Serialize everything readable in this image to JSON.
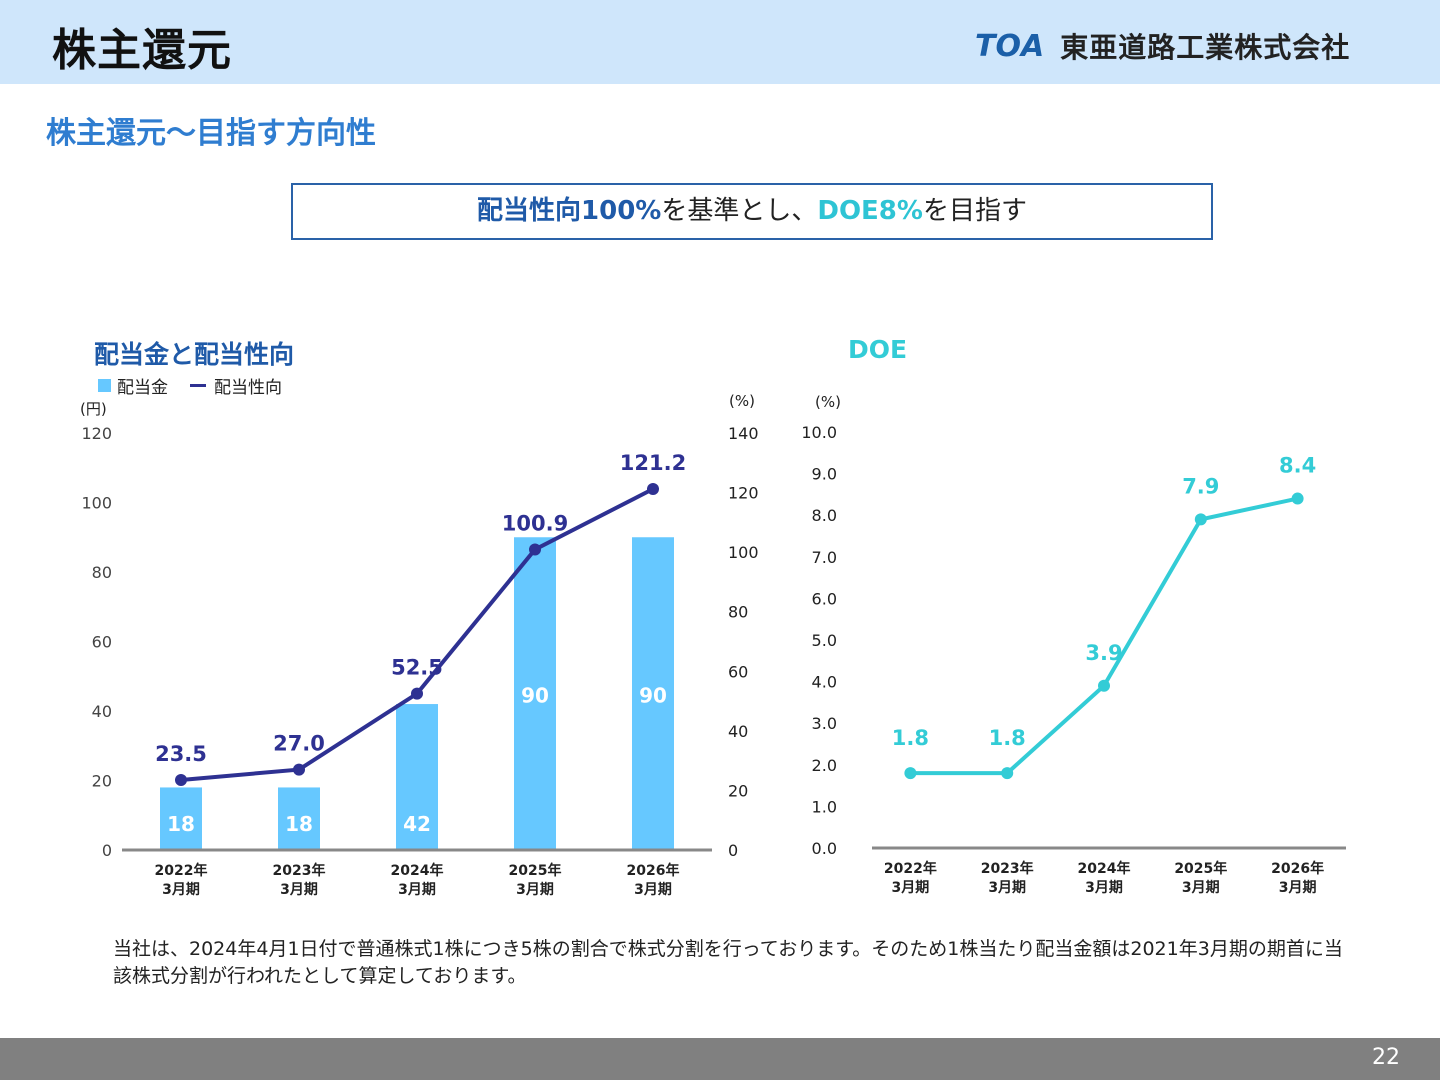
{
  "header": {
    "title": "株主還元",
    "logo_mark": "TOA",
    "company_name": "東亜道路工業株式会社"
  },
  "section_title": "株主還元〜目指す方向性",
  "banner": {
    "em1": "配当性向100%",
    "mid": "を基準とし、",
    "em2": "DOE8%",
    "end": "を目指す"
  },
  "colors": {
    "bar": "#66c8ff",
    "payout_line": "#2e3192",
    "doe_line": "#33ccd6",
    "title_blue": "#1f5aa8"
  },
  "chart_data": [
    {
      "type": "bar",
      "title": "配当金と配当性向",
      "categories": [
        "2022年\n3月期",
        "2023年\n3月期",
        "2024年\n3月期",
        "2025年\n3月期",
        "2026年\n3月期"
      ],
      "series": [
        {
          "name": "配当金",
          "type": "bar",
          "axis": "left",
          "values": [
            18,
            18,
            42,
            90,
            90
          ],
          "labels": [
            "18",
            "18",
            "42",
            "90",
            "90"
          ]
        },
        {
          "name": "配当性向",
          "type": "line",
          "axis": "right",
          "values": [
            23.5,
            27.0,
            52.5,
            100.9,
            121.2
          ],
          "labels": [
            "23.5",
            "27.0",
            "52.5",
            "100.9",
            "121.2"
          ]
        }
      ],
      "y_left": {
        "unit": "(円)",
        "ylim": [
          0,
          120
        ],
        "ticks": [
          "0",
          "20",
          "40",
          "60",
          "80",
          "100",
          "120"
        ]
      },
      "y_right": {
        "unit": "(%)",
        "ylim": [
          0,
          140
        ],
        "ticks": [
          "0",
          "20",
          "40",
          "60",
          "80",
          "100",
          "120",
          "140"
        ]
      },
      "legend": "top-left",
      "grid": false
    },
    {
      "type": "line",
      "title": "DOE",
      "categories": [
        "2022年\n3月期",
        "2023年\n3月期",
        "2024年\n3月期",
        "2025年\n3月期",
        "2026年\n3月期"
      ],
      "series": [
        {
          "values": [
            1.8,
            1.8,
            3.9,
            7.9,
            8.4
          ],
          "labels": [
            "1.8",
            "1.8",
            "3.9",
            "7.9",
            "8.4"
          ]
        }
      ],
      "y": {
        "unit": "(%)",
        "ylim": [
          0,
          10
        ],
        "ticks": [
          "0.0",
          "1.0",
          "2.0",
          "3.0",
          "4.0",
          "5.0",
          "6.0",
          "7.0",
          "8.0",
          "9.0",
          "10.0"
        ]
      },
      "grid": false
    }
  ],
  "footnote": "当社は、2024年4月1日付で普通株式1株につき5株の割合で株式分割を行っております。そのため1株当たり配当金額は2021年3月期の期首に当該株式分割が行われたとして算定しております。",
  "page_number": "22"
}
